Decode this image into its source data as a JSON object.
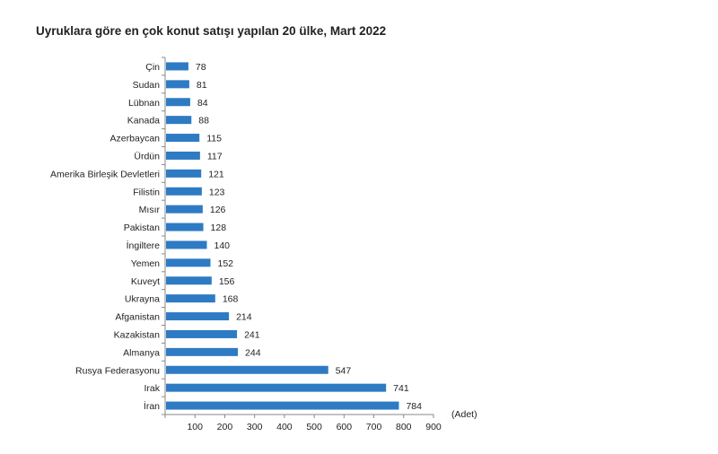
{
  "chart_data": {
    "type": "bar",
    "orientation": "horizontal",
    "title": "Uyruklara göre en çok konut satışı yapılan 20 ülke, Mart 2022",
    "xlabel": "(Adet)",
    "ylabel": "",
    "xlim": [
      0,
      900
    ],
    "xticks": [
      100,
      200,
      300,
      400,
      500,
      600,
      700,
      800,
      900
    ],
    "grid": false,
    "bar_color": "#2e7bc4",
    "categories": [
      "Çin",
      "Sudan",
      "Lübnan",
      "Kanada",
      "Azerbaycan",
      "Ürdün",
      "Amerika Birleşik Devletleri",
      "Filistin",
      "Mısır",
      "Pakistan",
      "İngiltere",
      "Yemen",
      "Kuveyt",
      "Ukrayna",
      "Afganistan",
      "Kazakistan",
      "Almanya",
      "Rusya Federasyonu",
      "Irak",
      "İran"
    ],
    "values": [
      78,
      81,
      84,
      88,
      115,
      117,
      121,
      123,
      126,
      128,
      140,
      152,
      156,
      168,
      214,
      241,
      244,
      547,
      741,
      784
    ]
  }
}
